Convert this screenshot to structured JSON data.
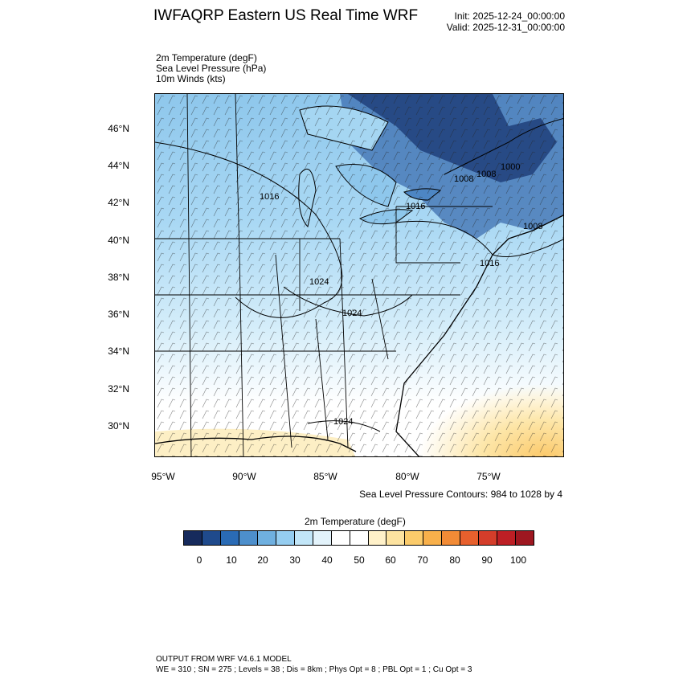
{
  "header": {
    "title": "IWFAQRP Eastern US Real Time WRF",
    "init": "Init: 2025-12-24_00:00:00",
    "valid": "Valid: 2025-12-31_00:00:00"
  },
  "fields": [
    "2m Temperature   (degF)",
    "Sea Level Pressure   (hPa)",
    "10m Winds   (kts)"
  ],
  "map": {
    "lat_ticks": [
      "46°N",
      "44°N",
      "42°N",
      "40°N",
      "38°N",
      "36°N",
      "34°N",
      "32°N",
      "30°N"
    ],
    "lon_ticks": [
      "95°W",
      "90°W",
      "85°W",
      "80°W",
      "75°W"
    ],
    "contour_labels": [
      "1016",
      "1016",
      "1008",
      "1008",
      "1000",
      "1016",
      "1024",
      "1024",
      "1024",
      "1008"
    ]
  },
  "slp_note": "Sea Level Pressure Contours: 984 to 1028 by 4",
  "colorbar": {
    "title": "2m Temperature  (degF)",
    "labels": [
      "0",
      "10",
      "20",
      "30",
      "40",
      "50",
      "60",
      "70",
      "80",
      "90",
      "100"
    ],
    "colors": [
      "#162a5c",
      "#1f4a8c",
      "#2a6bb5",
      "#4d8fcc",
      "#6fb0e0",
      "#95cdf0",
      "#c2e6f8",
      "#e3f3fb",
      "#ffffff",
      "#ffffff",
      "#fff1c9",
      "#fde3a0",
      "#fbcb6b",
      "#f8b04b",
      "#f28b36",
      "#e7602d",
      "#d43d2a",
      "#bd1f25",
      "#9e1720"
    ]
  },
  "footer": {
    "line1": "OUTPUT FROM WRF V4.6.1 MODEL",
    "line2": "WE = 310 ; SN = 275 ; Levels = 38 ; Dis = 8km ; Phys Opt = 8 ; PBL Opt = 1 ; Cu Opt = 3"
  }
}
